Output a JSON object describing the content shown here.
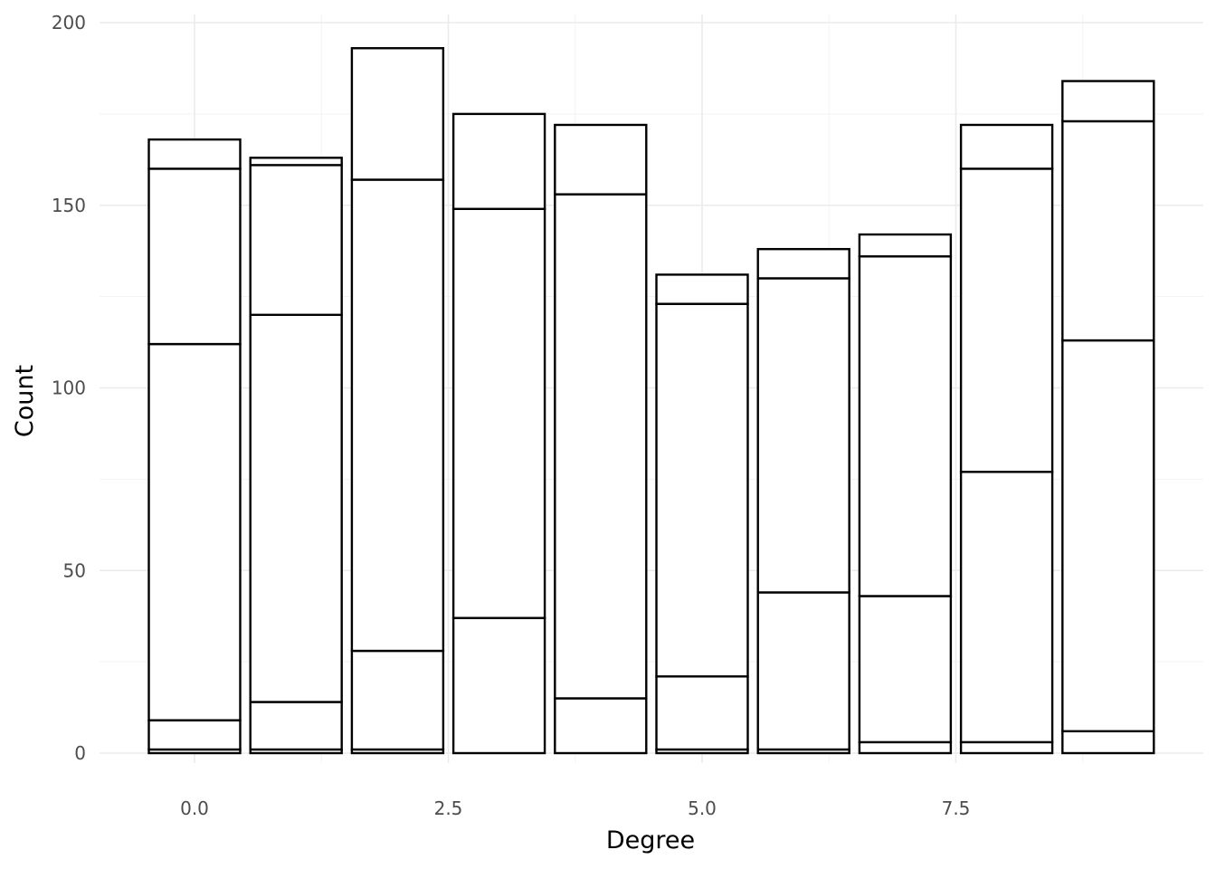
{
  "chart_data": {
    "type": "bar",
    "stacked": true,
    "title": "",
    "xlabel": "Degree",
    "ylabel": "Count",
    "xlim": [
      -0.9,
      9.9
    ],
    "ylim": [
      0,
      200
    ],
    "x_ticks": [
      0,
      2.5,
      5,
      7.5
    ],
    "x_tick_labels": [
      "0.0",
      "2.5",
      "5.0",
      "7.5"
    ],
    "y_ticks": [
      0,
      50,
      100,
      150,
      200
    ],
    "y_tick_labels": [
      "0",
      "50",
      "100",
      "150",
      "200"
    ],
    "grid": true,
    "legend": "none",
    "bar_fill": "#ffffff",
    "bar_outline": "#000000",
    "x": [
      0,
      1,
      2,
      3,
      4,
      5,
      6,
      7,
      8,
      9
    ],
    "cumulative_boundaries": [
      [
        0,
        1,
        9,
        112,
        160,
        168
      ],
      [
        0,
        1,
        14,
        120,
        161,
        163
      ],
      [
        0,
        1,
        28,
        157,
        193
      ],
      [
        0,
        37,
        149,
        175
      ],
      [
        0,
        15,
        153,
        172
      ],
      [
        0,
        1,
        21,
        123,
        131
      ],
      [
        0,
        1,
        44,
        130,
        138
      ],
      [
        0,
        3,
        43,
        136,
        142
      ],
      [
        0,
        3,
        77,
        160,
        172
      ],
      [
        0,
        6,
        113,
        173,
        184
      ]
    ],
    "totals": [
      168,
      163,
      193,
      175,
      172,
      131,
      138,
      142,
      172,
      184
    ]
  }
}
